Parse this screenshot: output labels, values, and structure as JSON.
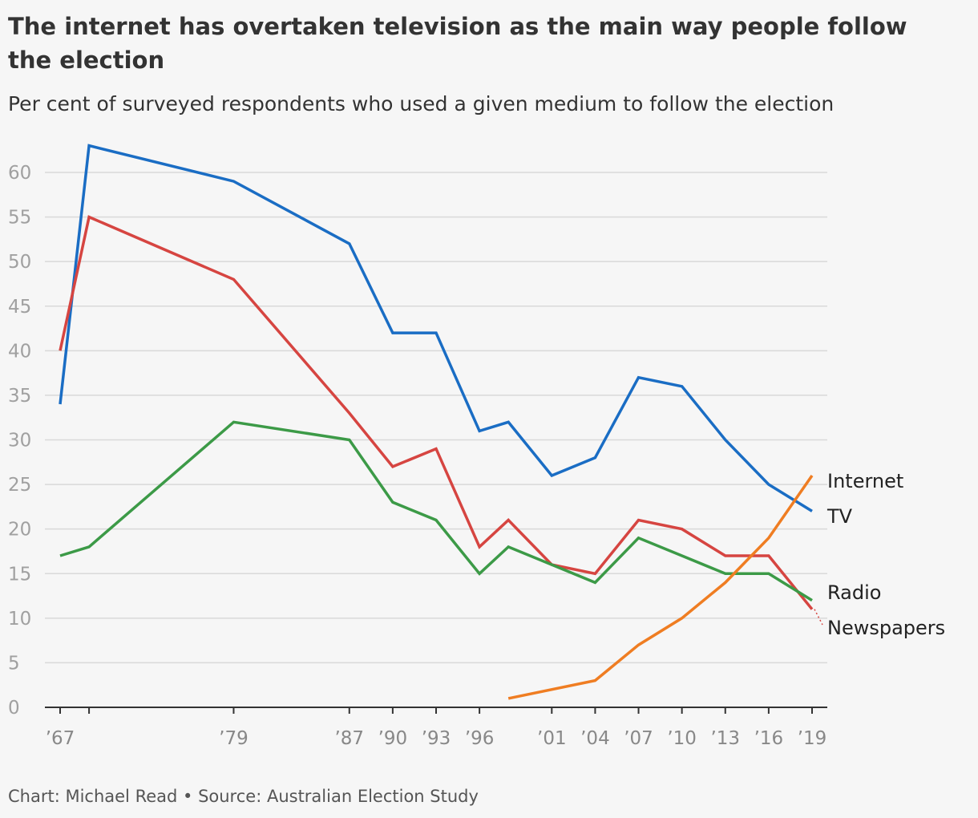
{
  "title": "The internet has overtaken television as the main way people follow the election",
  "subtitle": "Per cent of surveyed respondents who used a given medium to follow the election",
  "footer": "Chart: Michael Read • Source: Australian Election Study",
  "chart_data": {
    "type": "line",
    "title": "The internet has overtaken television as the main way people follow the election",
    "subtitle": "Per cent of surveyed respondents who used a given medium to follow the election",
    "xlabel": "",
    "ylabel": "",
    "xlim": [
      1967,
      2019
    ],
    "ylim": [
      0,
      60
    ],
    "yticks": [
      0,
      5,
      10,
      15,
      20,
      25,
      30,
      35,
      40,
      45,
      50,
      55,
      60
    ],
    "xticks": [
      {
        "value": 1967,
        "label": "’67"
      },
      {
        "value": 1979,
        "label": "’79"
      },
      {
        "value": 1987,
        "label": "’87"
      },
      {
        "value": 1990,
        "label": "’90"
      },
      {
        "value": 1993,
        "label": "’93"
      },
      {
        "value": 1996,
        "label": "’96"
      },
      {
        "value": 2001,
        "label": "’01"
      },
      {
        "value": 2004,
        "label": "’04"
      },
      {
        "value": 2007,
        "label": "’07"
      },
      {
        "value": 2010,
        "label": "’10"
      },
      {
        "value": 2013,
        "label": "’13"
      },
      {
        "value": 2016,
        "label": "’16"
      },
      {
        "value": 2019,
        "label": "’19"
      }
    ],
    "minor_xticks": [
      1969
    ],
    "grid": true,
    "legend": "direct labels at right end of lines",
    "series": [
      {
        "name": "TV",
        "color": "#1a6dc4",
        "x": [
          1967,
          1969,
          1979,
          1987,
          1990,
          1993,
          1996,
          1998,
          2001,
          2004,
          2007,
          2010,
          2013,
          2016,
          2019
        ],
        "values": [
          34,
          63,
          59,
          52,
          42,
          42,
          31,
          32,
          26,
          28,
          37,
          36,
          30,
          25,
          22
        ]
      },
      {
        "name": "Newspapers",
        "color": "#d64541",
        "x": [
          1967,
          1969,
          1979,
          1987,
          1990,
          1993,
          1996,
          1998,
          2001,
          2004,
          2007,
          2010,
          2013,
          2016,
          2019
        ],
        "values": [
          40,
          55,
          48,
          33,
          27,
          29,
          18,
          21,
          16,
          15,
          21,
          20,
          17,
          17,
          11
        ]
      },
      {
        "name": "Radio",
        "color": "#3c9a47",
        "x": [
          1967,
          1969,
          1979,
          1987,
          1990,
          1993,
          1996,
          1998,
          2001,
          2004,
          2007,
          2010,
          2013,
          2016,
          2019
        ],
        "values": [
          17,
          18,
          32,
          30,
          23,
          21,
          15,
          18,
          16,
          14,
          19,
          17,
          15,
          15,
          12
        ]
      },
      {
        "name": "Internet",
        "color": "#ef7d22",
        "x": [
          1998,
          2004,
          2007,
          2010,
          2013,
          2016,
          2019
        ],
        "values": [
          1,
          3,
          7,
          10,
          14,
          19,
          26
        ]
      }
    ]
  }
}
